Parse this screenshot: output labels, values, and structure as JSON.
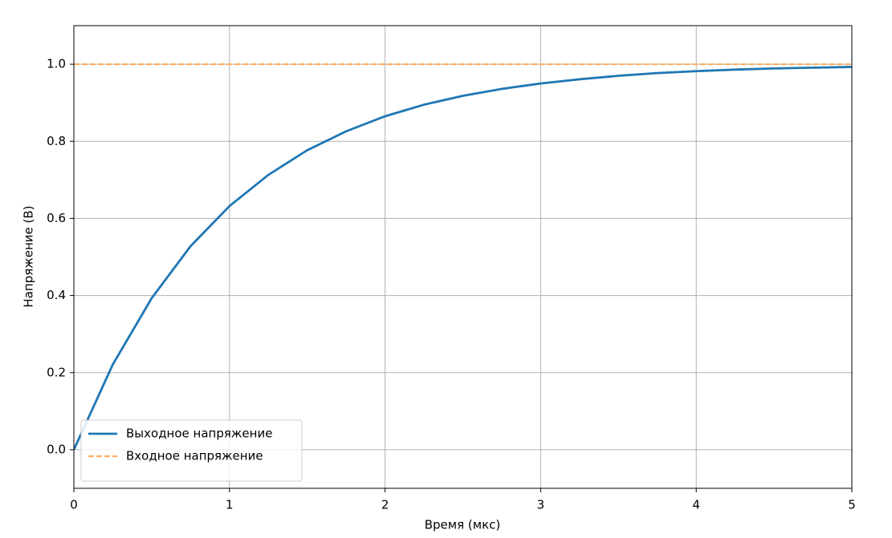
{
  "chart_data": {
    "type": "line",
    "xlabel": "Время (мкс)",
    "ylabel": "Напряжение (В)",
    "x": [
      0,
      0.25,
      0.5,
      0.75,
      1,
      1.25,
      1.5,
      1.75,
      2,
      2.25,
      2.5,
      2.75,
      3,
      3.25,
      3.5,
      3.75,
      4,
      4.25,
      4.5,
      4.75,
      5
    ],
    "series": [
      {
        "name": "Выходное напряжение",
        "color": "#1f77b4",
        "style": "solid",
        "values": [
          0,
          0.221,
          0.393,
          0.528,
          0.632,
          0.713,
          0.777,
          0.826,
          0.865,
          0.895,
          0.918,
          0.936,
          0.95,
          0.961,
          0.97,
          0.977,
          0.982,
          0.986,
          0.989,
          0.991,
          0.993
        ]
      },
      {
        "name": "Входное напряжение",
        "color": "#ffa85a",
        "style": "dashed",
        "values": [
          1,
          1,
          1,
          1,
          1,
          1,
          1,
          1,
          1,
          1,
          1,
          1,
          1,
          1,
          1,
          1,
          1,
          1,
          1,
          1,
          1
        ]
      }
    ],
    "xlim": [
      0,
      5
    ],
    "xticks": [
      0,
      1,
      2,
      3,
      4,
      5
    ],
    "ylim": [
      -0.1,
      1.1
    ],
    "yticks": [
      {
        "value": 0,
        "label": "0.0"
      },
      {
        "value": 0.2,
        "label": "0.2"
      },
      {
        "value": 0.4,
        "label": "0.4"
      },
      {
        "value": 0.6,
        "label": "0.6"
      },
      {
        "value": 0.8,
        "label": "0.8"
      },
      {
        "value": 1,
        "label": "1.0"
      }
    ],
    "grid": true,
    "legend": "lower left"
  }
}
